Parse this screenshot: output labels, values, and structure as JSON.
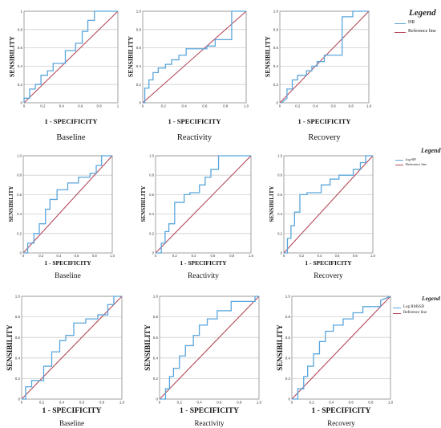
{
  "colors": {
    "roc": "#5aa6dc",
    "reference": "#b34a5a",
    "grid": "#cfcfcf",
    "frame": "#8a8a8a"
  },
  "rows": [
    {
      "legend": {
        "title": "Legend",
        "entries": [
          "HR",
          "Reference line"
        ]
      },
      "panels": [
        {
          "ylabel": "SENSIBILITY",
          "xlabel": "1 - SPECIFICITY",
          "condition": "Baseline"
        },
        {
          "ylabel": "SENSIBILITY",
          "xlabel": "1 - SPECIFICITY",
          "condition": "Reactivity"
        },
        {
          "ylabel": "SENSIBILITY",
          "xlabel": "1 - SPECIFICITY",
          "condition": "Recovery"
        }
      ]
    },
    {
      "legend": {
        "title": "Legend",
        "entries": [
          "log-HF",
          "Reference line"
        ]
      },
      "panels": [
        {
          "ylabel": "SENSIBILITY",
          "xlabel": "1 - SPECIFICITY",
          "condition": "Baseline"
        },
        {
          "ylabel": "SENSIBILITY",
          "xlabel": "1 - SPECIFICITY",
          "condition": "Reactivity"
        },
        {
          "ylabel": "SENSIBILITY",
          "xlabel": "1 - SPECIFICITY",
          "condition": "Recovery"
        }
      ]
    },
    {
      "legend": {
        "title": "Legend",
        "entries": [
          "Log RMSSD",
          "Reference line"
        ]
      },
      "panels": [
        {
          "ylabel": "SENSIBILITY",
          "xlabel": "1 - SPECIFICITY",
          "condition": "Baseline"
        },
        {
          "ylabel": "SENSIBILITY",
          "xlabel": "1 - SPECIFICITY",
          "condition": "Reactivity"
        },
        {
          "ylabel": "SENSIBILITY",
          "xlabel": "1 - SPECIFICITY",
          "condition": "Recovery"
        }
      ]
    }
  ],
  "chart_data": [
    {
      "type": "line",
      "title": "",
      "xlabel": "1 - SPECIFICITY",
      "ylabel": "SENSIBILITY",
      "xlim": [
        0,
        1
      ],
      "ylim": [
        0,
        1
      ],
      "grid": "horizontal",
      "xticks": [
        "0",
        "0.2",
        "0.4",
        "0.6",
        "0.8",
        "1"
      ],
      "yticks": [
        "0",
        "0.2",
        "0.4",
        "0.6",
        "0.8",
        "1"
      ],
      "series": [
        {
          "name": "HR",
          "x": [
            0,
            0,
            0.06,
            0.06,
            0.12,
            0.12,
            0.18,
            0.18,
            0.25,
            0.25,
            0.31,
            0.31,
            0.38,
            0.44,
            0.44,
            0.55,
            0.55,
            0.62,
            0.62,
            0.68,
            0.68,
            0.75,
            0.75,
            0.88,
            0.88,
            1
          ],
          "y": [
            0,
            0.05,
            0.05,
            0.15,
            0.15,
            0.2,
            0.2,
            0.3,
            0.3,
            0.35,
            0.35,
            0.43,
            0.43,
            0.43,
            0.57,
            0.57,
            0.65,
            0.65,
            0.78,
            0.78,
            0.9,
            0.9,
            1,
            1,
            1,
            1
          ]
        },
        {
          "name": "Reference line",
          "x": [
            0,
            1
          ],
          "y": [
            0,
            1
          ]
        }
      ]
    },
    {
      "type": "line",
      "title": "",
      "xlabel": "1 - SPECIFICITY",
      "ylabel": "SENSIBILITY",
      "xlim": [
        0,
        1
      ],
      "ylim": [
        0,
        1
      ],
      "grid": "horizontal",
      "xticks": [
        "0",
        "0.2",
        "0.4",
        "0.6",
        "0.8",
        "1.0"
      ],
      "yticks": [
        "0",
        "0.2",
        "0.4",
        "0.6",
        "0.8",
        "1.0"
      ],
      "series": [
        {
          "name": "HR",
          "x": [
            0,
            0.02,
            0.02,
            0.06,
            0.06,
            0.1,
            0.1,
            0.15,
            0.15,
            0.22,
            0.22,
            0.28,
            0.28,
            0.35,
            0.35,
            0.42,
            0.42,
            0.62,
            0.62,
            0.7,
            0.7,
            0.86,
            0.86,
            0.98,
            1
          ],
          "y": [
            0,
            0,
            0.16,
            0.16,
            0.25,
            0.25,
            0.33,
            0.33,
            0.38,
            0.38,
            0.42,
            0.42,
            0.47,
            0.47,
            0.52,
            0.52,
            0.59,
            0.59,
            0.62,
            0.62,
            0.69,
            0.69,
            1,
            1,
            1
          ]
        },
        {
          "name": "Reference line",
          "x": [
            0,
            1
          ],
          "y": [
            0,
            1
          ]
        }
      ]
    },
    {
      "type": "line",
      "title": "",
      "xlabel": "1 - SPECIFICITY",
      "ylabel": "SENSIBILITY",
      "xlim": [
        0,
        1
      ],
      "ylim": [
        0,
        1
      ],
      "grid": "horizontal",
      "xticks": [
        "0",
        "0.2",
        "0.4",
        "0.6",
        "0.8",
        "1.0"
      ],
      "yticks": [
        "0",
        "0.2",
        "0.4",
        "0.6",
        "0.8",
        "1.0"
      ],
      "series": [
        {
          "name": "HR",
          "x": [
            0.02,
            0.08,
            0.08,
            0.14,
            0.14,
            0.2,
            0.2,
            0.3,
            0.3,
            0.36,
            0.36,
            0.42,
            0.42,
            0.5,
            0.5,
            0.62,
            0.62,
            0.7,
            0.7,
            0.82,
            0.82,
            0.88,
            1
          ],
          "y": [
            0,
            0.05,
            0.15,
            0.15,
            0.25,
            0.25,
            0.3,
            0.3,
            0.35,
            0.35,
            0.4,
            0.4,
            0.45,
            0.45,
            0.52,
            0.52,
            0.52,
            0.52,
            0.94,
            0.94,
            1,
            1,
            1
          ]
        },
        {
          "name": "Reference line",
          "x": [
            0,
            1
          ],
          "y": [
            0,
            1
          ]
        }
      ]
    },
    {
      "type": "line",
      "title": "",
      "xlabel": "1 - SPECIFICITY",
      "ylabel": "SENSIBILITY",
      "xlim": [
        0,
        1
      ],
      "ylim": [
        0,
        1
      ],
      "grid": "horizontal",
      "xticks": [
        "0",
        "0.2",
        "0.4",
        "0.6",
        "0.8",
        "1.0"
      ],
      "yticks": [
        "0",
        "0.2",
        "0.4",
        "0.6",
        "0.8",
        "1.0"
      ],
      "series": [
        {
          "name": "log-HF",
          "x": [
            0,
            0.05,
            0.05,
            0.12,
            0.12,
            0.18,
            0.18,
            0.25,
            0.25,
            0.3,
            0.3,
            0.38,
            0.38,
            0.5,
            0.5,
            0.62,
            0.62,
            0.75,
            0.75,
            0.82,
            0.82,
            0.88,
            0.88,
            1
          ],
          "y": [
            0,
            0,
            0.1,
            0.1,
            0.2,
            0.2,
            0.3,
            0.3,
            0.45,
            0.45,
            0.55,
            0.55,
            0.65,
            0.65,
            0.72,
            0.72,
            0.78,
            0.78,
            0.82,
            0.82,
            0.9,
            0.9,
            1,
            1
          ]
        },
        {
          "name": "Reference line",
          "x": [
            0,
            1
          ],
          "y": [
            0,
            1
          ]
        }
      ]
    },
    {
      "type": "line",
      "title": "",
      "xlabel": "1 - SPECIFICITY",
      "ylabel": "SENSIBILITY",
      "xlim": [
        0,
        1
      ],
      "ylim": [
        0,
        1
      ],
      "grid": "horizontal",
      "xticks": [
        "0",
        "0.2",
        "0.4",
        "0.6",
        "0.8",
        "1.0"
      ],
      "yticks": [
        "0",
        "0.2",
        "0.4",
        "0.6",
        "0.8",
        "1.0"
      ],
      "series": [
        {
          "name": "log-HF",
          "x": [
            0,
            0.06,
            0.06,
            0.1,
            0.1,
            0.14,
            0.14,
            0.2,
            0.2,
            0.3,
            0.3,
            0.36,
            0.36,
            0.46,
            0.46,
            0.52,
            0.52,
            0.58,
            0.58,
            0.66,
            0.66,
            0.84,
            0.84,
            1
          ],
          "y": [
            0,
            0,
            0.1,
            0.1,
            0.22,
            0.22,
            0.3,
            0.3,
            0.52,
            0.52,
            0.6,
            0.6,
            0.62,
            0.62,
            0.7,
            0.7,
            0.78,
            0.78,
            0.86,
            0.86,
            1,
            1,
            1,
            1
          ]
        },
        {
          "name": "Reference line",
          "x": [
            0,
            1
          ],
          "y": [
            0,
            1
          ]
        }
      ]
    },
    {
      "type": "line",
      "title": "",
      "xlabel": "1 - SPECIFICITY",
      "ylabel": "SENSIBILITY",
      "xlim": [
        0,
        1
      ],
      "ylim": [
        0,
        1
      ],
      "grid": "horizontal",
      "xticks": [
        "0",
        "0.2",
        "0.4",
        "0.6",
        "0.8",
        "1.0"
      ],
      "yticks": [
        "0",
        "0.2",
        "0.4",
        "0.6",
        "0.8",
        "1.0"
      ],
      "series": [
        {
          "name": "log-HF",
          "x": [
            0,
            0.04,
            0.04,
            0.08,
            0.08,
            0.12,
            0.12,
            0.18,
            0.18,
            0.26,
            0.26,
            0.42,
            0.42,
            0.52,
            0.52,
            0.62,
            0.62,
            0.78,
            0.78,
            0.86,
            0.86,
            0.92,
            0.92,
            1
          ],
          "y": [
            0,
            0,
            0.15,
            0.15,
            0.28,
            0.28,
            0.42,
            0.42,
            0.6,
            0.6,
            0.62,
            0.62,
            0.7,
            0.7,
            0.76,
            0.76,
            0.8,
            0.8,
            0.86,
            0.86,
            0.93,
            0.93,
            1,
            1
          ]
        },
        {
          "name": "Reference line",
          "x": [
            0,
            1
          ],
          "y": [
            0,
            1
          ]
        }
      ]
    },
    {
      "type": "line",
      "title": "",
      "xlabel": "1 - SPECIFICITY",
      "ylabel": "SENSIBILITY",
      "xlim": [
        0,
        1
      ],
      "ylim": [
        0,
        1
      ],
      "grid": "horizontal",
      "xticks": [
        "0",
        "0.2",
        "0.4",
        "0.6",
        "0.8",
        "1.0"
      ],
      "yticks": [
        "0",
        "0.2",
        "0.4",
        "0.6",
        "0.8",
        "1.0"
      ],
      "series": [
        {
          "name": "Log RMSSD",
          "x": [
            0,
            0.04,
            0.04,
            0.1,
            0.1,
            0.22,
            0.22,
            0.3,
            0.3,
            0.38,
            0.38,
            0.44,
            0.44,
            0.52,
            0.52,
            0.64,
            0.64,
            0.76,
            0.76,
            0.86,
            0.86,
            0.92,
            0.92,
            1
          ],
          "y": [
            0,
            0,
            0.12,
            0.12,
            0.18,
            0.18,
            0.32,
            0.32,
            0.46,
            0.46,
            0.57,
            0.57,
            0.62,
            0.62,
            0.74,
            0.74,
            0.78,
            0.78,
            0.82,
            0.82,
            0.92,
            0.92,
            1,
            1
          ]
        },
        {
          "name": "Reference line",
          "x": [
            0,
            1
          ],
          "y": [
            0,
            1
          ]
        }
      ]
    },
    {
      "type": "line",
      "title": "",
      "xlabel": "1 - SPECIFICITY",
      "ylabel": "SENSIBILITY",
      "xlim": [
        0,
        1
      ],
      "ylim": [
        0,
        1
      ],
      "grid": "horizontal",
      "xticks": [
        "0",
        "0.2",
        "0.4",
        "0.6",
        "0.8",
        "1.0"
      ],
      "yticks": [
        "0",
        "0.2",
        "0.4",
        "0.6",
        "0.8",
        "1.0"
      ],
      "series": [
        {
          "name": "Log RMSSD",
          "x": [
            0,
            0.06,
            0.06,
            0.1,
            0.1,
            0.14,
            0.14,
            0.2,
            0.2,
            0.26,
            0.26,
            0.34,
            0.34,
            0.4,
            0.4,
            0.48,
            0.48,
            0.58,
            0.58,
            0.72,
            0.72,
            0.96,
            0.96,
            1
          ],
          "y": [
            0,
            0,
            0.1,
            0.1,
            0.22,
            0.22,
            0.3,
            0.3,
            0.42,
            0.42,
            0.52,
            0.52,
            0.62,
            0.62,
            0.72,
            0.72,
            0.78,
            0.78,
            0.86,
            0.86,
            0.95,
            0.95,
            1,
            1
          ]
        },
        {
          "name": "Reference line",
          "x": [
            0,
            1
          ],
          "y": [
            0,
            1
          ]
        }
      ]
    },
    {
      "type": "line",
      "title": "",
      "xlabel": "1 - SPECIFICITY",
      "ylabel": "SENSIBILITY",
      "xlim": [
        0,
        1
      ],
      "ylim": [
        0,
        1
      ],
      "grid": "horizontal",
      "xticks": [
        "0",
        "0.2",
        "0.4",
        "0.6",
        "0.8",
        "1.0"
      ],
      "yticks": [
        "0",
        "0.2",
        "0.4",
        "0.6",
        "0.8",
        "1.0"
      ],
      "series": [
        {
          "name": "Log RMSSD",
          "x": [
            0,
            0.06,
            0.06,
            0.12,
            0.12,
            0.16,
            0.16,
            0.22,
            0.22,
            0.28,
            0.28,
            0.34,
            0.34,
            0.42,
            0.42,
            0.52,
            0.52,
            0.62,
            0.62,
            0.72,
            0.72,
            0.9,
            0.9,
            1
          ],
          "y": [
            0,
            0,
            0.1,
            0.1,
            0.22,
            0.22,
            0.32,
            0.32,
            0.44,
            0.44,
            0.56,
            0.56,
            0.66,
            0.66,
            0.72,
            0.72,
            0.78,
            0.78,
            0.84,
            0.84,
            0.9,
            0.9,
            0.96,
            1
          ]
        },
        {
          "name": "Reference line",
          "x": [
            0,
            1
          ],
          "y": [
            0,
            1
          ]
        }
      ]
    }
  ]
}
